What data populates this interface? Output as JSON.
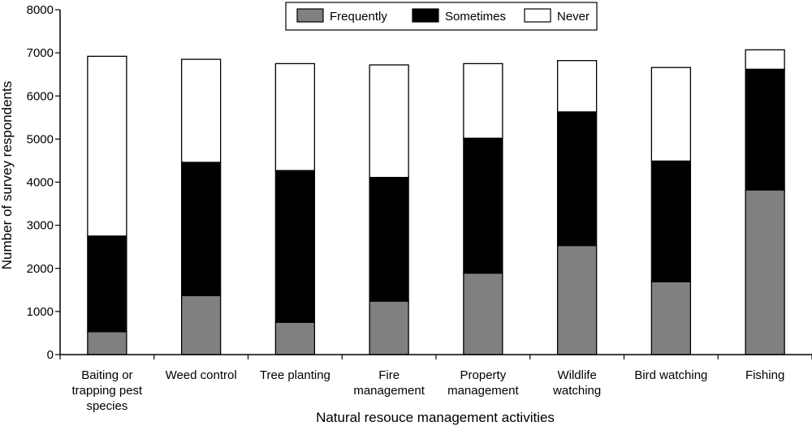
{
  "chart_data": {
    "type": "bar",
    "stacked": true,
    "categories": [
      [
        "Baiting or",
        "trapping pest",
        "species"
      ],
      [
        "Weed control"
      ],
      [
        "Tree planting"
      ],
      [
        "Fire",
        "management"
      ],
      [
        "Property",
        "management"
      ],
      [
        "Wildlife",
        "watching"
      ],
      [
        "Bird watching"
      ],
      [
        "Fishing"
      ]
    ],
    "series": [
      {
        "name": "Frequently",
        "color": "#808080",
        "values": [
          530,
          1370,
          750,
          1240,
          1890,
          2530,
          1690,
          3820
        ]
      },
      {
        "name": "Sometimes",
        "color": "#000000",
        "values": [
          2220,
          3090,
          3520,
          2870,
          3130,
          3100,
          2800,
          2800
        ]
      },
      {
        "name": "Never",
        "color": "#ffffff",
        "values": [
          4170,
          2390,
          2480,
          2610,
          1730,
          1190,
          2170,
          450
        ]
      }
    ],
    "title": "",
    "xlabel": "Natural resouce management activities",
    "ylabel": "Number of survey respondents",
    "ylim": [
      0,
      8000
    ],
    "yticks": [
      "0",
      "1000",
      "2000",
      "3000",
      "4000",
      "5000",
      "6000",
      "7000",
      "8000"
    ],
    "grid": false,
    "legend_position": "top-center"
  }
}
